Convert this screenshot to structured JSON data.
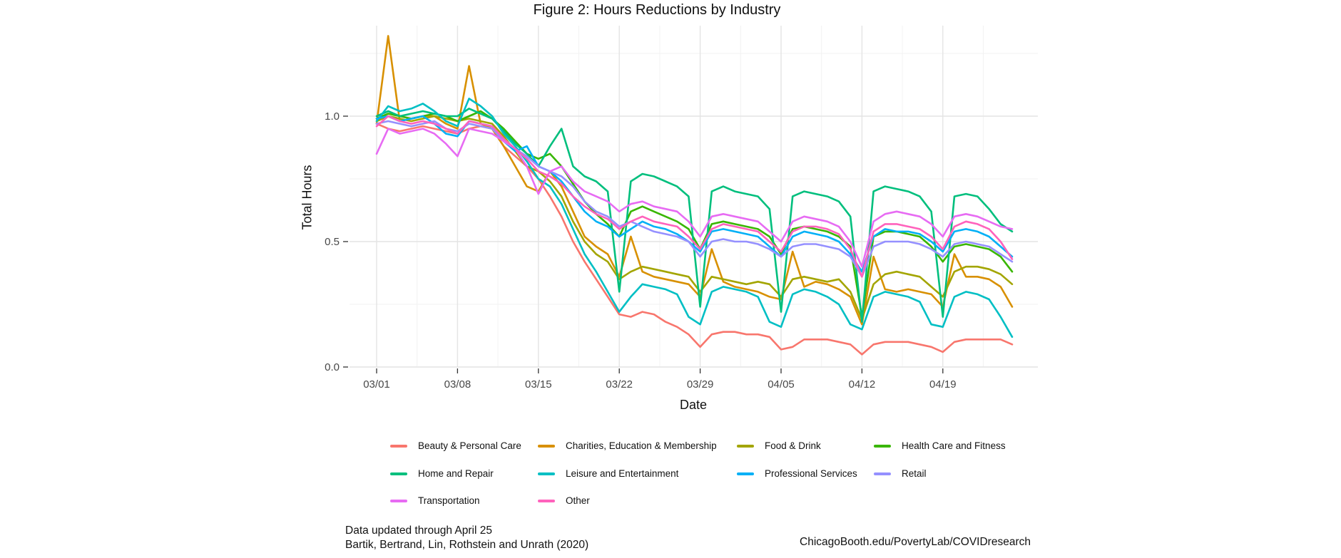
{
  "title": "Figure 2: Hours Reductions by Industry",
  "footer": {
    "note_line1": "Data updated through April 25",
    "note_line2": "Bartik, Bertrand, Lin, Rothstein and Unrath (2020)",
    "site": "ChicagoBooth.edu/PovertyLab/COVIDresearch"
  },
  "legend": {
    "rows": [
      [
        "Beauty & Personal Care",
        "Charities, Education & Membership",
        "Food & Drink",
        "Health Care and Fitness"
      ],
      [
        "Home and Repair",
        "Leisure and Entertainment",
        "Professional Services",
        "Retail"
      ],
      [
        "Transportation",
        "Other"
      ]
    ]
  },
  "chart_data": {
    "type": "line",
    "title": "Figure 2: Hours Reductions by Industry",
    "xlabel": "Date",
    "ylabel": "Total Hours",
    "ylim": [
      0,
      1.35
    ],
    "grid": "major light-gray horizontal and vertical on white, minor fainter",
    "legend_position": "bottom",
    "yticks": [
      {
        "value": 0.0,
        "label": "0.0"
      },
      {
        "value": 0.5,
        "label": "0.5"
      },
      {
        "value": 1.0,
        "label": "1.0"
      }
    ],
    "xticks": [
      {
        "index": 0,
        "label": "03/01"
      },
      {
        "index": 7,
        "label": "03/08"
      },
      {
        "index": 14,
        "label": "03/15"
      },
      {
        "index": 21,
        "label": "03/22"
      },
      {
        "index": 28,
        "label": "03/29"
      },
      {
        "index": 35,
        "label": "04/05"
      },
      {
        "index": 42,
        "label": "04/12"
      },
      {
        "index": 49,
        "label": "04/19"
      }
    ],
    "x": [
      "03/01",
      "03/02",
      "03/03",
      "03/04",
      "03/05",
      "03/06",
      "03/07",
      "03/08",
      "03/09",
      "03/10",
      "03/11",
      "03/12",
      "03/13",
      "03/14",
      "03/15",
      "03/16",
      "03/17",
      "03/18",
      "03/19",
      "03/20",
      "03/21",
      "03/22",
      "03/23",
      "03/24",
      "03/25",
      "03/26",
      "03/27",
      "03/28",
      "03/29",
      "03/30",
      "03/31",
      "04/01",
      "04/02",
      "04/03",
      "04/04",
      "04/05",
      "04/06",
      "04/07",
      "04/08",
      "04/09",
      "04/10",
      "04/11",
      "04/12",
      "04/13",
      "04/14",
      "04/15",
      "04/16",
      "04/17",
      "04/18",
      "04/19",
      "04/20",
      "04/21",
      "04/22",
      "04/23",
      "04/24",
      "04/25"
    ],
    "series": [
      {
        "name": "Beauty & Personal Care",
        "color": "#F8766D",
        "values": [
          0.97,
          0.95,
          0.94,
          0.95,
          0.96,
          0.95,
          0.94,
          0.93,
          0.95,
          0.96,
          0.95,
          0.88,
          0.84,
          0.8,
          0.75,
          0.68,
          0.6,
          0.5,
          0.42,
          0.35,
          0.28,
          0.21,
          0.2,
          0.22,
          0.21,
          0.18,
          0.16,
          0.13,
          0.08,
          0.13,
          0.14,
          0.14,
          0.13,
          0.13,
          0.12,
          0.07,
          0.08,
          0.11,
          0.11,
          0.11,
          0.1,
          0.09,
          0.05,
          0.09,
          0.1,
          0.1,
          0.1,
          0.09,
          0.08,
          0.06,
          0.1,
          0.11,
          0.11,
          0.11,
          0.11,
          0.09
        ]
      },
      {
        "name": "Charities, Education & Membership",
        "color": "#D89000",
        "values": [
          0.97,
          1.32,
          0.98,
          0.99,
          1.0,
          1.0,
          0.97,
          0.95,
          1.2,
          0.97,
          0.95,
          0.88,
          0.8,
          0.72,
          0.7,
          0.78,
          0.72,
          0.62,
          0.52,
          0.48,
          0.45,
          0.36,
          0.52,
          0.38,
          0.36,
          0.35,
          0.34,
          0.33,
          0.28,
          0.47,
          0.34,
          0.32,
          0.31,
          0.3,
          0.28,
          0.27,
          0.46,
          0.32,
          0.34,
          0.33,
          0.31,
          0.28,
          0.17,
          0.44,
          0.31,
          0.3,
          0.31,
          0.3,
          0.29,
          0.24,
          0.45,
          0.36,
          0.36,
          0.35,
          0.32,
          0.24
        ]
      },
      {
        "name": "Food & Drink",
        "color": "#A3A500",
        "values": [
          0.98,
          1.0,
          0.99,
          0.98,
          0.99,
          1.0,
          0.99,
          0.98,
          0.99,
          0.98,
          0.97,
          0.92,
          0.86,
          0.8,
          0.78,
          0.74,
          0.68,
          0.58,
          0.5,
          0.45,
          0.42,
          0.35,
          0.38,
          0.4,
          0.39,
          0.38,
          0.37,
          0.36,
          0.3,
          0.36,
          0.35,
          0.34,
          0.33,
          0.34,
          0.33,
          0.28,
          0.35,
          0.36,
          0.35,
          0.34,
          0.35,
          0.3,
          0.19,
          0.33,
          0.37,
          0.38,
          0.37,
          0.36,
          0.32,
          0.28,
          0.38,
          0.4,
          0.4,
          0.39,
          0.37,
          0.33
        ]
      },
      {
        "name": "Health Care and Fitness",
        "color": "#39B600",
        "values": [
          0.99,
          1.01,
          1.0,
          0.99,
          1.0,
          1.01,
          1.0,
          0.98,
          1.0,
          1.02,
          0.99,
          0.95,
          0.9,
          0.85,
          0.83,
          0.85,
          0.8,
          0.73,
          0.66,
          0.61,
          0.57,
          0.52,
          0.62,
          0.64,
          0.62,
          0.6,
          0.58,
          0.55,
          0.47,
          0.57,
          0.58,
          0.57,
          0.56,
          0.55,
          0.52,
          0.45,
          0.55,
          0.56,
          0.55,
          0.54,
          0.52,
          0.48,
          0.2,
          0.52,
          0.54,
          0.54,
          0.53,
          0.52,
          0.48,
          0.42,
          0.48,
          0.49,
          0.48,
          0.47,
          0.44,
          0.38
        ]
      },
      {
        "name": "Home and Repair",
        "color": "#00BF7D",
        "values": [
          1.0,
          1.02,
          1.0,
          1.01,
          1.02,
          1.01,
          1.0,
          1.0,
          1.03,
          1.01,
          0.99,
          0.94,
          0.89,
          0.85,
          0.8,
          0.88,
          0.95,
          0.8,
          0.76,
          0.74,
          0.7,
          0.3,
          0.74,
          0.77,
          0.76,
          0.74,
          0.72,
          0.68,
          0.24,
          0.7,
          0.72,
          0.7,
          0.69,
          0.68,
          0.63,
          0.22,
          0.68,
          0.7,
          0.69,
          0.68,
          0.66,
          0.6,
          0.18,
          0.7,
          0.72,
          0.71,
          0.7,
          0.68,
          0.62,
          0.2,
          0.68,
          0.69,
          0.68,
          0.63,
          0.57,
          0.54
        ]
      },
      {
        "name": "Leisure and Entertainment",
        "color": "#00BFC4",
        "values": [
          0.98,
          1.04,
          1.02,
          1.03,
          1.05,
          1.02,
          0.98,
          0.96,
          1.07,
          1.04,
          1.0,
          0.93,
          0.88,
          0.82,
          0.75,
          0.72,
          0.65,
          0.55,
          0.45,
          0.38,
          0.3,
          0.22,
          0.28,
          0.33,
          0.32,
          0.31,
          0.29,
          0.2,
          0.17,
          0.3,
          0.32,
          0.31,
          0.3,
          0.28,
          0.18,
          0.16,
          0.29,
          0.31,
          0.3,
          0.28,
          0.25,
          0.17,
          0.15,
          0.28,
          0.3,
          0.29,
          0.28,
          0.26,
          0.17,
          0.16,
          0.28,
          0.3,
          0.29,
          0.27,
          0.2,
          0.12
        ]
      },
      {
        "name": "Professional Services",
        "color": "#00B0F6",
        "values": [
          0.99,
          1.0,
          0.98,
          0.99,
          1.0,
          0.97,
          0.93,
          0.92,
          0.98,
          0.97,
          0.96,
          0.9,
          0.86,
          0.88,
          0.8,
          0.78,
          0.74,
          0.68,
          0.62,
          0.58,
          0.56,
          0.52,
          0.55,
          0.58,
          0.56,
          0.55,
          0.53,
          0.5,
          0.46,
          0.54,
          0.55,
          0.54,
          0.53,
          0.52,
          0.48,
          0.44,
          0.52,
          0.54,
          0.53,
          0.52,
          0.5,
          0.45,
          0.38,
          0.52,
          0.55,
          0.54,
          0.54,
          0.53,
          0.5,
          0.46,
          0.54,
          0.55,
          0.54,
          0.52,
          0.48,
          0.44
        ]
      },
      {
        "name": "Retail",
        "color": "#9590FF",
        "values": [
          0.97,
          0.98,
          0.97,
          0.96,
          0.97,
          0.98,
          0.95,
          0.94,
          0.97,
          0.96,
          0.95,
          0.9,
          0.87,
          0.84,
          0.8,
          0.78,
          0.76,
          0.72,
          0.66,
          0.62,
          0.6,
          0.56,
          0.58,
          0.56,
          0.54,
          0.53,
          0.52,
          0.5,
          0.44,
          0.5,
          0.51,
          0.5,
          0.5,
          0.49,
          0.47,
          0.44,
          0.48,
          0.49,
          0.49,
          0.48,
          0.47,
          0.44,
          0.36,
          0.48,
          0.5,
          0.5,
          0.5,
          0.49,
          0.47,
          0.44,
          0.49,
          0.5,
          0.49,
          0.48,
          0.45,
          0.42
        ]
      },
      {
        "name": "Transportation",
        "color": "#E76BF3",
        "values": [
          0.85,
          0.95,
          0.93,
          0.94,
          0.95,
          0.93,
          0.89,
          0.84,
          0.95,
          0.94,
          0.93,
          0.9,
          0.87,
          0.8,
          0.69,
          0.78,
          0.8,
          0.74,
          0.7,
          0.68,
          0.66,
          0.62,
          0.65,
          0.66,
          0.64,
          0.63,
          0.62,
          0.58,
          0.52,
          0.6,
          0.61,
          0.6,
          0.59,
          0.58,
          0.54,
          0.5,
          0.58,
          0.6,
          0.59,
          0.58,
          0.56,
          0.5,
          0.4,
          0.58,
          0.61,
          0.62,
          0.61,
          0.6,
          0.57,
          0.52,
          0.6,
          0.61,
          0.6,
          0.58,
          0.56,
          0.55
        ]
      },
      {
        "name": "Other",
        "color": "#FF62BC",
        "values": [
          0.96,
          1.0,
          0.98,
          0.97,
          0.98,
          0.97,
          0.95,
          0.93,
          0.98,
          0.97,
          0.96,
          0.91,
          0.87,
          0.83,
          0.78,
          0.76,
          0.73,
          0.68,
          0.64,
          0.61,
          0.59,
          0.55,
          0.58,
          0.6,
          0.58,
          0.57,
          0.56,
          0.52,
          0.47,
          0.55,
          0.57,
          0.56,
          0.55,
          0.54,
          0.5,
          0.46,
          0.54,
          0.56,
          0.56,
          0.55,
          0.53,
          0.47,
          0.36,
          0.54,
          0.57,
          0.57,
          0.56,
          0.55,
          0.52,
          0.47,
          0.56,
          0.58,
          0.57,
          0.55,
          0.5,
          0.43
        ]
      }
    ]
  }
}
